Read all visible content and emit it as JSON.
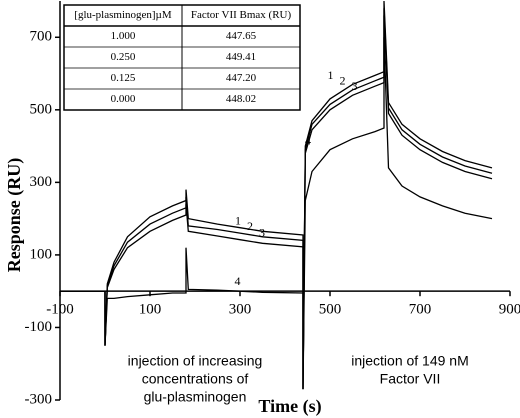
{
  "chart_data": {
    "type": "line",
    "x_label": "Time (s)",
    "y_label": "Response (RU)",
    "xlim": [
      -100,
      900
    ],
    "ylim": [
      -300,
      800
    ],
    "xticks": [
      -100,
      100,
      300,
      500,
      700,
      900
    ],
    "yticks": [
      -300,
      -100,
      100,
      300,
      500,
      700
    ],
    "grid": false,
    "x": [
      -100,
      0,
      0,
      5,
      20,
      50,
      100,
      150,
      180,
      180,
      185,
      250,
      300,
      350,
      440,
      440,
      445,
      460,
      500,
      550,
      600,
      620,
      620,
      630,
      660,
      700,
      750,
      800,
      860
    ],
    "series": [
      {
        "name": "1",
        "color": "#000000",
        "values": [
          0,
          0,
          -150,
          20,
          80,
          150,
          205,
          235,
          250,
          280,
          200,
          185,
          175,
          165,
          155,
          -270,
          400,
          470,
          530,
          570,
          595,
          605,
          800,
          520,
          460,
          420,
          385,
          360,
          340
        ]
      },
      {
        "name": "2",
        "color": "#000000",
        "values": [
          0,
          0,
          -150,
          15,
          70,
          135,
          185,
          215,
          230,
          260,
          180,
          170,
          160,
          150,
          140,
          -270,
          390,
          460,
          515,
          555,
          580,
          590,
          780,
          505,
          445,
          405,
          370,
          345,
          325
        ]
      },
      {
        "name": "3",
        "color": "#000000",
        "values": [
          0,
          0,
          -150,
          10,
          60,
          120,
          165,
          195,
          210,
          240,
          165,
          152,
          142,
          132,
          122,
          -270,
          380,
          445,
          500,
          540,
          565,
          575,
          760,
          490,
          430,
          390,
          355,
          330,
          310
        ]
      },
      {
        "name": "4",
        "color": "#000000",
        "values": [
          0,
          0,
          -150,
          -20,
          -20,
          -15,
          -10,
          -5,
          -5,
          120,
          5,
          3,
          0,
          -3,
          -5,
          -270,
          250,
          330,
          390,
          420,
          440,
          450,
          700,
          340,
          290,
          260,
          235,
          215,
          200
        ]
      }
    ],
    "annotations": [
      [
        "injection of increasing",
        "concentrations of",
        "glu-plasminogen"
      ],
      [
        "injection of 149 nM",
        "Factor VII"
      ]
    ],
    "table": {
      "columns": [
        "[glu-plasminogen]µM",
        "Factor VII Bmax (RU)"
      ],
      "rows": [
        [
          "1.000",
          "447.65"
        ],
        [
          "0.250",
          "449.41"
        ],
        [
          "0.125",
          "447.20"
        ],
        [
          "0.000",
          "448.02"
        ]
      ]
    }
  }
}
